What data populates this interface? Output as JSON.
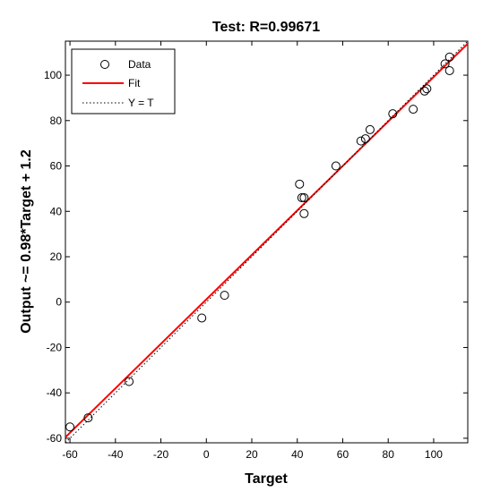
{
  "chart_data": {
    "type": "scatter",
    "title": "Test: R=0.99671",
    "xlabel": "Target",
    "ylabel": "Output ~= 0.98*Target + 1.2",
    "xlim": [
      -62,
      115
    ],
    "ylim": [
      -62,
      115
    ],
    "xticks": [
      -60,
      -40,
      -20,
      0,
      20,
      40,
      60,
      80,
      100
    ],
    "yticks": [
      -60,
      -40,
      -20,
      0,
      20,
      40,
      60,
      80,
      100
    ],
    "grid": false,
    "legend_position": "top-left",
    "series": [
      {
        "name": "Data",
        "kind": "markers",
        "marker": "circle-open",
        "color": "#000000",
        "points": [
          [
            -60,
            -55
          ],
          [
            -52,
            -51
          ],
          [
            -34,
            -35
          ],
          [
            -2,
            -7
          ],
          [
            8,
            3
          ],
          [
            41,
            52
          ],
          [
            42,
            46
          ],
          [
            43,
            46
          ],
          [
            43,
            39
          ],
          [
            57,
            60
          ],
          [
            68,
            71
          ],
          [
            70,
            72
          ],
          [
            72,
            76
          ],
          [
            82,
            83
          ],
          [
            91,
            85
          ],
          [
            96,
            93
          ],
          [
            97,
            94
          ],
          [
            105,
            105
          ],
          [
            107,
            108
          ],
          [
            107,
            102
          ]
        ]
      },
      {
        "name": "Fit",
        "kind": "line",
        "color": "#ff0000",
        "slope": 0.98,
        "intercept": 1.2
      },
      {
        "name": "Y = T",
        "kind": "dotted-line",
        "color": "#000000",
        "slope": 1,
        "intercept": 0
      }
    ]
  }
}
